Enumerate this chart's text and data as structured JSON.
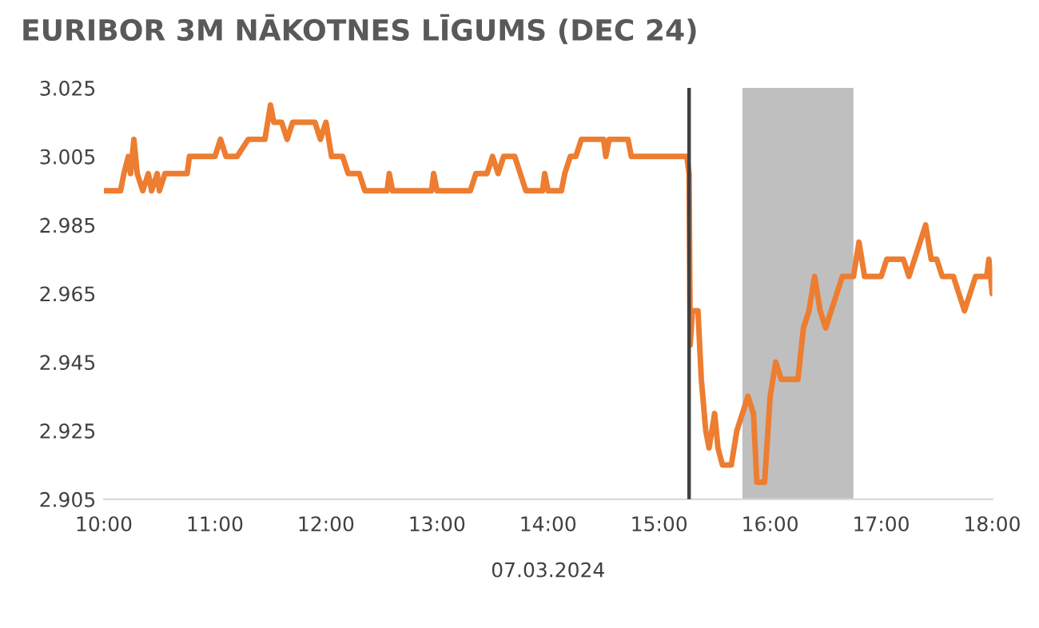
{
  "chart_data": {
    "type": "line",
    "title": "EURIBOR 3M NĀKOTNES LĪGUMS (DEC 24)",
    "xlabel": "07.03.2024",
    "x": [
      10.0,
      10.15,
      10.18,
      10.22,
      10.24,
      10.27,
      10.3,
      10.35,
      10.4,
      10.43,
      10.48,
      10.5,
      10.55,
      10.75,
      10.77,
      11.0,
      11.05,
      11.1,
      11.2,
      11.3,
      11.45,
      11.5,
      11.53,
      11.6,
      11.65,
      11.7,
      11.9,
      11.95,
      12.0,
      12.05,
      12.15,
      12.2,
      12.3,
      12.35,
      12.55,
      12.57,
      12.6,
      12.95,
      12.97,
      13.0,
      13.3,
      13.35,
      13.45,
      13.5,
      13.55,
      13.6,
      13.7,
      13.75,
      13.8,
      13.95,
      13.97,
      14.0,
      14.12,
      14.15,
      14.2,
      14.25,
      14.3,
      14.5,
      14.52,
      14.55,
      14.72,
      14.75,
      15.25,
      15.27,
      15.28,
      15.3,
      15.35,
      15.38,
      15.42,
      15.45,
      15.5,
      15.53,
      15.57,
      15.65,
      15.7,
      15.75,
      15.8,
      15.85,
      15.88,
      15.95,
      16.0,
      16.05,
      16.1,
      16.15,
      16.25,
      16.3,
      16.35,
      16.4,
      16.45,
      16.5,
      16.55,
      16.6,
      16.65,
      16.75,
      16.8,
      16.85,
      17.0,
      17.05,
      17.2,
      17.25,
      17.3,
      17.4,
      17.45,
      17.5,
      17.55,
      17.65,
      17.7,
      17.75,
      17.8,
      17.85,
      17.95,
      17.97,
      18.0
    ],
    "series": [
      {
        "color": "#ed7d31",
        "values": [
          2.995,
          2.995,
          3.0,
          3.005,
          3.0,
          3.01,
          3.0,
          2.995,
          3.0,
          2.995,
          3.0,
          2.995,
          3.0,
          3.0,
          3.005,
          3.005,
          3.01,
          3.005,
          3.005,
          3.01,
          3.01,
          3.02,
          3.015,
          3.015,
          3.01,
          3.015,
          3.015,
          3.01,
          3.015,
          3.005,
          3.005,
          3.0,
          3.0,
          2.995,
          2.995,
          3.0,
          2.995,
          2.995,
          3.0,
          2.995,
          2.995,
          3.0,
          3.0,
          3.005,
          3.0,
          3.005,
          3.005,
          3.0,
          2.995,
          2.995,
          3.0,
          2.995,
          2.995,
          3.0,
          3.005,
          3.005,
          3.01,
          3.01,
          3.005,
          3.01,
          3.01,
          3.005,
          3.005,
          3.0,
          2.95,
          2.96,
          2.96,
          2.94,
          2.925,
          2.92,
          2.93,
          2.92,
          2.915,
          2.915,
          2.925,
          2.93,
          2.935,
          2.93,
          2.91,
          2.91,
          2.935,
          2.945,
          2.94,
          2.94,
          2.94,
          2.955,
          2.96,
          2.97,
          2.96,
          2.955,
          2.96,
          2.965,
          2.97,
          2.97,
          2.98,
          2.97,
          2.97,
          2.975,
          2.975,
          2.97,
          2.975,
          2.985,
          2.975,
          2.975,
          2.97,
          2.97,
          2.965,
          2.96,
          2.965,
          2.97,
          2.97,
          2.975,
          2.965
        ]
      }
    ],
    "xlim": [
      10,
      18
    ],
    "xticks": [
      {
        "value": 10,
        "label": "10:00"
      },
      {
        "value": 11,
        "label": "11:00"
      },
      {
        "value": 12,
        "label": "12:00"
      },
      {
        "value": 13,
        "label": "13:00"
      },
      {
        "value": 14,
        "label": "14:00"
      },
      {
        "value": 15,
        "label": "15:00"
      },
      {
        "value": 16,
        "label": "16:00"
      },
      {
        "value": 17,
        "label": "17:00"
      },
      {
        "value": 18,
        "label": "18:00"
      }
    ],
    "ylim": [
      2.905,
      3.025
    ],
    "yticks": [
      2.905,
      2.925,
      2.945,
      2.965,
      2.985,
      3.005,
      3.025
    ],
    "ref_lines": [
      {
        "axis": "x",
        "value": 15.27,
        "color": "#404040"
      }
    ],
    "bands": [
      {
        "axis": "x",
        "from": 15.75,
        "to": 16.75,
        "color": "#bfbfbf"
      }
    ],
    "grid": false,
    "legend": false,
    "marker": "none",
    "line_style": "solid"
  }
}
